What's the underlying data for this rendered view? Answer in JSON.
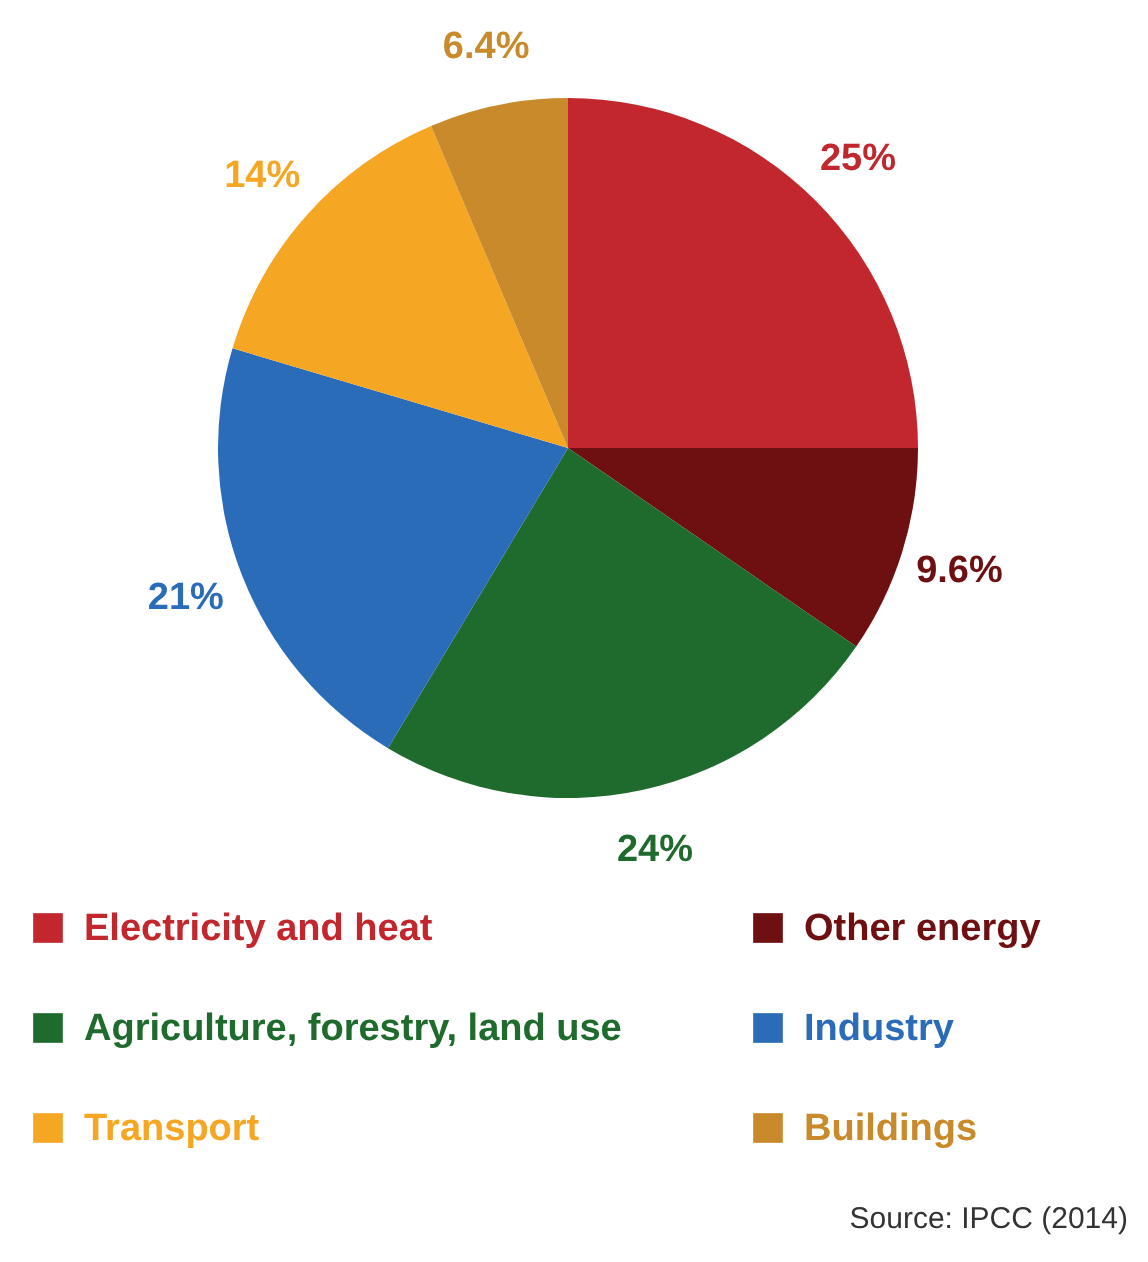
{
  "chart_data": {
    "type": "pie",
    "categories": [
      "Electricity and heat",
      "Other energy",
      "Agriculture, forestry, land use",
      "Industry",
      "Transport",
      "Buildings"
    ],
    "values": [
      25,
      9.6,
      24,
      21,
      14,
      6.4
    ],
    "value_labels": [
      "25%",
      "9.6%",
      "24%",
      "21%",
      "14%",
      "6.4%"
    ],
    "colors": [
      "#c1272d",
      "#6e1012",
      "#1f6b2e",
      "#2b6cb8",
      "#f5a623",
      "#c98a2b"
    ],
    "legend": "bottom",
    "annotations": [
      "Source: IPCC (2014)"
    ]
  }
}
